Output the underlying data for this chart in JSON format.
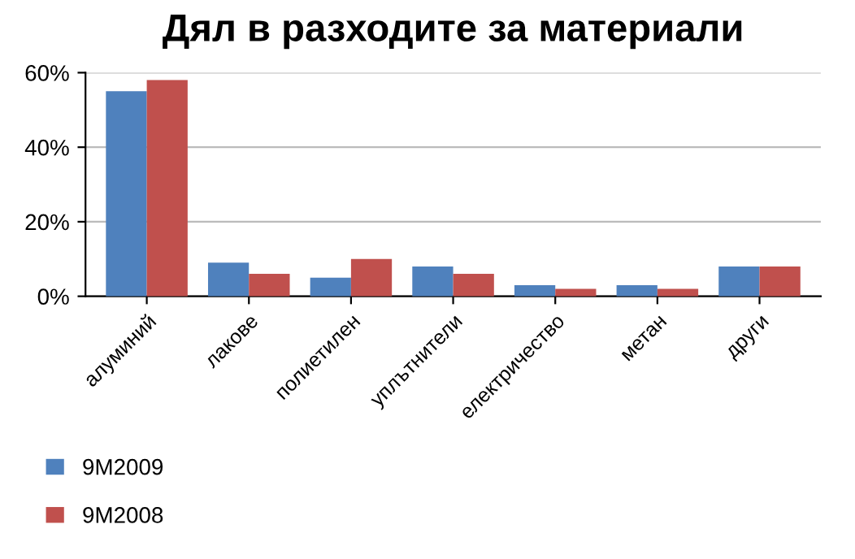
{
  "chart_data": {
    "type": "bar",
    "title": "Дял в разходите за материали",
    "categories": [
      "алуминий",
      "лакове",
      "полиетилен",
      "уплътнители",
      "електричество",
      "метан",
      "други"
    ],
    "series": [
      {
        "name": "9M2009",
        "color": "#4f81bd",
        "values": [
          55,
          9,
          5,
          8,
          3,
          3,
          8
        ]
      },
      {
        "name": "9M2008",
        "color": "#c0504d",
        "values": [
          58,
          6,
          10,
          6,
          2,
          2,
          8
        ]
      }
    ],
    "ylim": [
      0,
      60
    ],
    "yticks": [
      {
        "value": 0,
        "label": "0%"
      },
      {
        "value": 20,
        "label": "20%"
      },
      {
        "value": 40,
        "label": "40%"
      },
      {
        "value": 60,
        "label": "60%"
      }
    ],
    "grid": "y",
    "legend": "bottom left"
  }
}
